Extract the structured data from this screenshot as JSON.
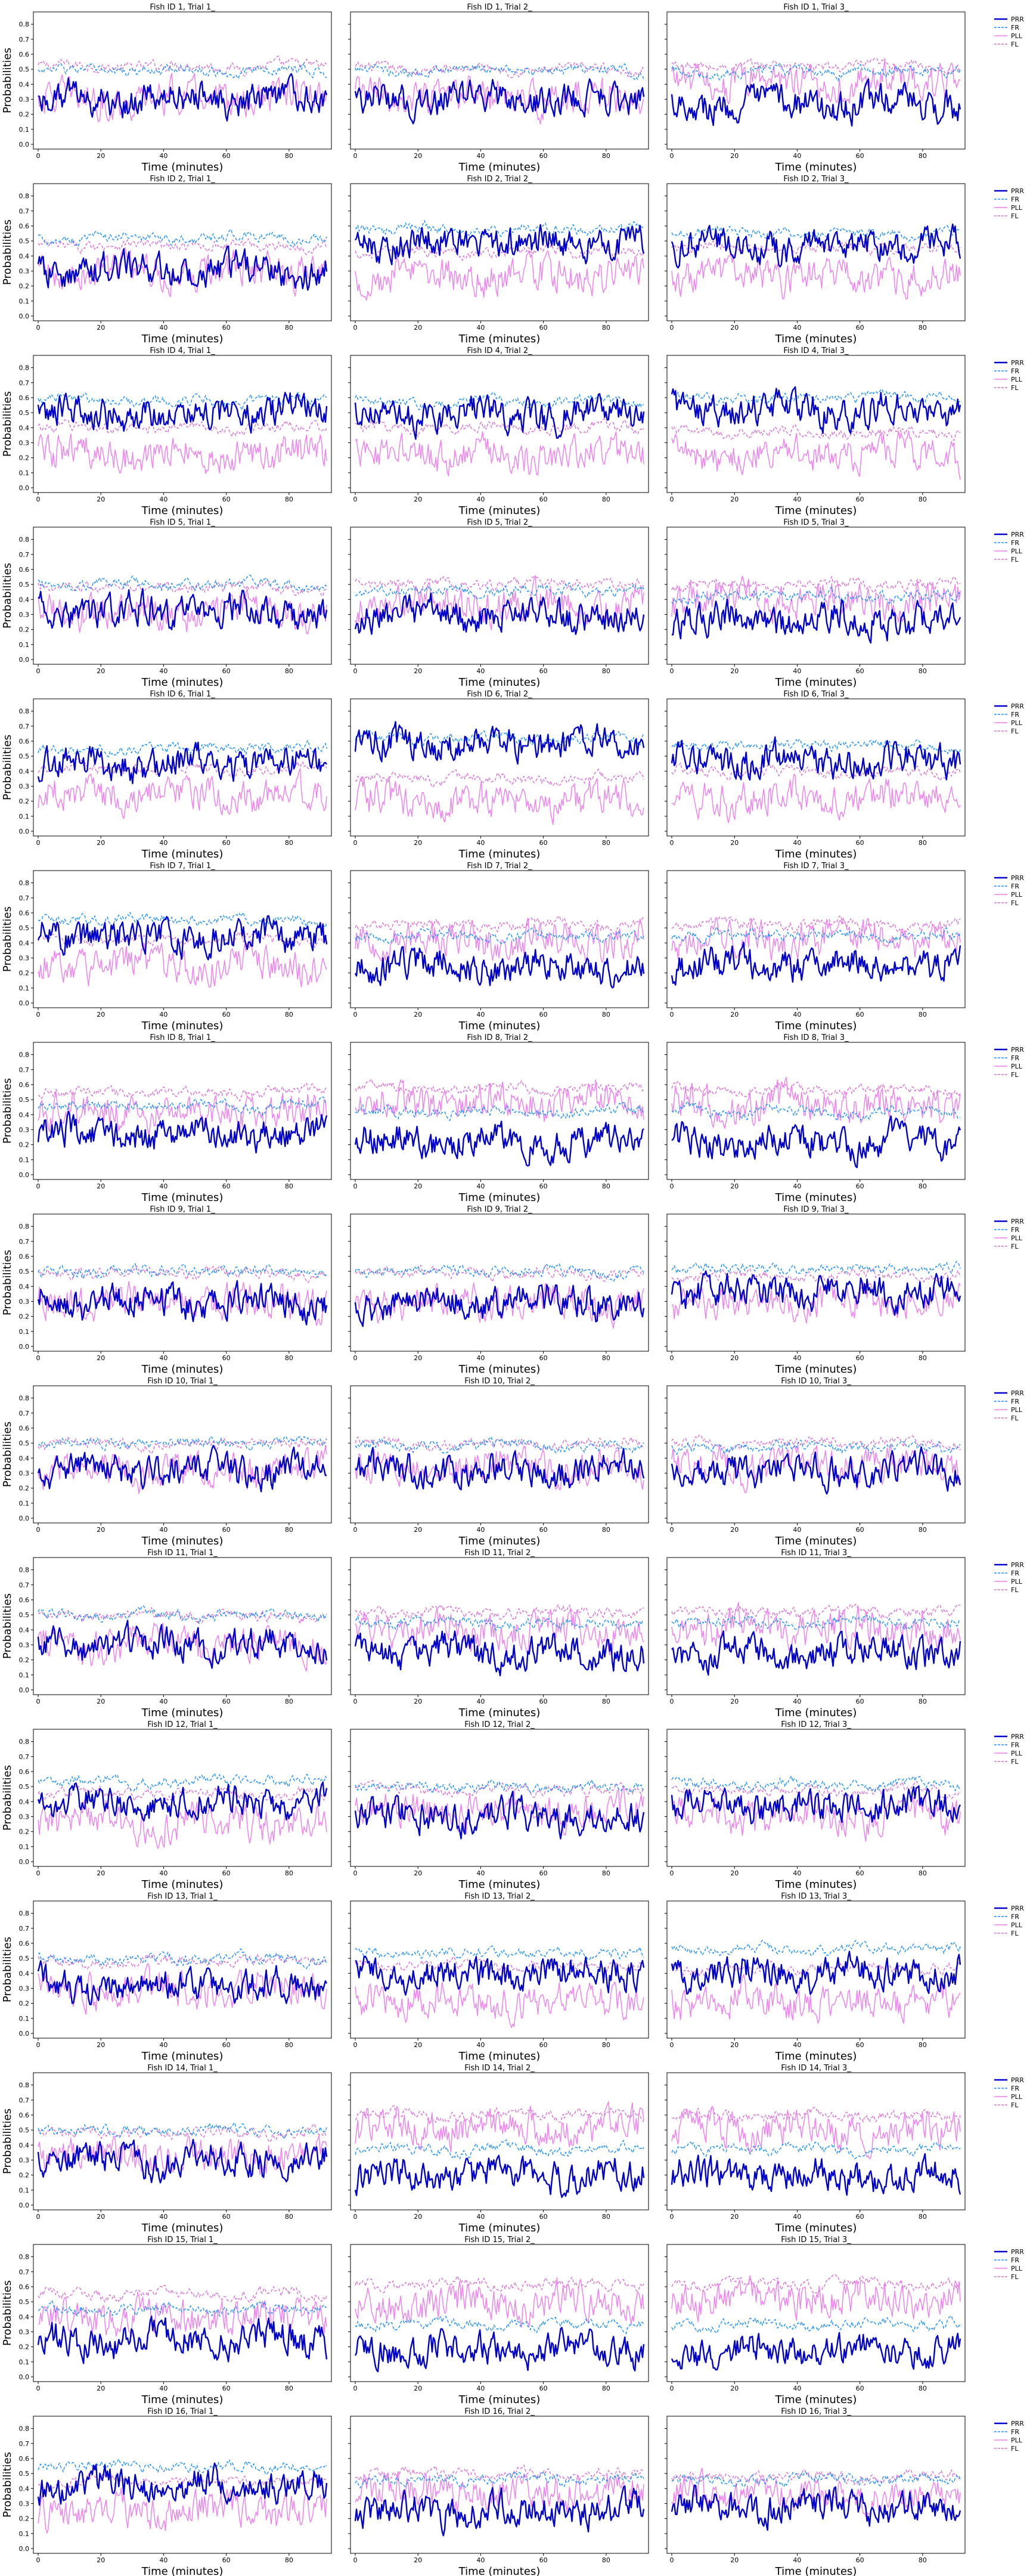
{
  "figure": {
    "ylabel": "Probabilities",
    "xlabel": "Time (minutes)"
  },
  "chart_data": {
    "type": "line",
    "layout": "15 rows x 3 columns of line plots",
    "x_range": [
      0,
      92
    ],
    "ylim": [
      0,
      0.85
    ],
    "x_ticks": [
      0,
      20,
      40,
      60,
      80
    ],
    "y_ticks": [
      0.0,
      0.1,
      0.2,
      0.3,
      0.4,
      0.5,
      0.6,
      0.7,
      0.8
    ],
    "xlabel": "Time (minutes)",
    "ylabel": "Probabilities",
    "legend_placement": "outside right of each row",
    "series": [
      {
        "name": "PRR",
        "color": "#0000cd",
        "style": "solid thick"
      },
      {
        "name": "FR",
        "color": "#1e90ff",
        "style": "dashed"
      },
      {
        "name": "PLL",
        "color": "#ee82ee",
        "style": "solid"
      },
      {
        "name": "FL",
        "color": "#da70d6",
        "style": "dashed"
      }
    ],
    "panels": [
      {
        "title": "Fish ID 1, Trial 1_",
        "means": {
          "PRR": 0.3,
          "FR": 0.49,
          "PLL": 0.3,
          "FL": 0.52
        }
      },
      {
        "title": "Fish ID 1, Trial 2_",
        "means": {
          "PRR": 0.3,
          "FR": 0.49,
          "PLL": 0.31,
          "FL": 0.5
        }
      },
      {
        "title": "Fish ID 1, Trial 3_",
        "means": {
          "PRR": 0.27,
          "FR": 0.48,
          "PLL": 0.42,
          "FL": 0.52
        }
      },
      {
        "title": "Fish ID 2, Trial 1_",
        "means": {
          "PRR": 0.3,
          "FR": 0.52,
          "PLL": 0.3,
          "FL": 0.47
        }
      },
      {
        "title": "Fish ID 2, Trial 2_",
        "means": {
          "PRR": 0.48,
          "FR": 0.58,
          "PLL": 0.27,
          "FL": 0.43
        }
      },
      {
        "title": "Fish ID 2, Trial 3_",
        "means": {
          "PRR": 0.47,
          "FR": 0.55,
          "PLL": 0.27,
          "FL": 0.45
        }
      },
      {
        "title": "Fish ID 4, Trial 1_",
        "means": {
          "PRR": 0.5,
          "FR": 0.58,
          "PLL": 0.22,
          "FL": 0.4
        }
      },
      {
        "title": "Fish ID 4, Trial 2_",
        "means": {
          "PRR": 0.48,
          "FR": 0.57,
          "PLL": 0.22,
          "FL": 0.4
        }
      },
      {
        "title": "Fish ID 4, Trial 3_",
        "means": {
          "PRR": 0.52,
          "FR": 0.6,
          "PLL": 0.22,
          "FL": 0.37
        }
      },
      {
        "title": "Fish ID 5, Trial 1_",
        "means": {
          "PRR": 0.32,
          "FR": 0.5,
          "PLL": 0.32,
          "FL": 0.48
        }
      },
      {
        "title": "Fish ID 5, Trial 2_",
        "means": {
          "PRR": 0.3,
          "FR": 0.46,
          "PLL": 0.37,
          "FL": 0.5
        }
      },
      {
        "title": "Fish ID 5, Trial 3_",
        "means": {
          "PRR": 0.27,
          "FR": 0.42,
          "PLL": 0.4,
          "FL": 0.5
        }
      },
      {
        "title": "Fish ID 6, Trial 1_",
        "means": {
          "PRR": 0.45,
          "FR": 0.55,
          "PLL": 0.25,
          "FL": 0.42
        }
      },
      {
        "title": "Fish ID 6, Trial 2_",
        "means": {
          "PRR": 0.58,
          "FR": 0.62,
          "PLL": 0.2,
          "FL": 0.35
        }
      },
      {
        "title": "Fish ID 6, Trial 3_",
        "means": {
          "PRR": 0.48,
          "FR": 0.57,
          "PLL": 0.22,
          "FL": 0.4
        }
      },
      {
        "title": "Fish ID 7, Trial 1_",
        "means": {
          "PRR": 0.45,
          "FR": 0.56,
          "PLL": 0.25,
          "FL": 0.42
        }
      },
      {
        "title": "Fish ID 7, Trial 2_",
        "means": {
          "PRR": 0.25,
          "FR": 0.45,
          "PLL": 0.42,
          "FL": 0.52
        }
      },
      {
        "title": "Fish ID 7, Trial 3_",
        "means": {
          "PRR": 0.25,
          "FR": 0.45,
          "PLL": 0.42,
          "FL": 0.52
        }
      },
      {
        "title": "Fish ID 8, Trial 1_",
        "means": {
          "PRR": 0.27,
          "FR": 0.46,
          "PLL": 0.42,
          "FL": 0.55
        }
      },
      {
        "title": "Fish ID 8, Trial 2_",
        "means": {
          "PRR": 0.22,
          "FR": 0.42,
          "PLL": 0.47,
          "FL": 0.58
        }
      },
      {
        "title": "Fish ID 8, Trial 3_",
        "means": {
          "PRR": 0.22,
          "FR": 0.42,
          "PLL": 0.47,
          "FL": 0.57
        }
      },
      {
        "title": "Fish ID 9, Trial 1_",
        "means": {
          "PRR": 0.3,
          "FR": 0.5,
          "PLL": 0.3,
          "FL": 0.49
        }
      },
      {
        "title": "Fish ID 9, Trial 2_",
        "means": {
          "PRR": 0.3,
          "FR": 0.5,
          "PLL": 0.3,
          "FL": 0.49
        }
      },
      {
        "title": "Fish ID 9, Trial 3_",
        "means": {
          "PRR": 0.37,
          "FR": 0.52,
          "PLL": 0.3,
          "FL": 0.47
        }
      },
      {
        "title": "Fish ID 10, Trial 1_",
        "means": {
          "PRR": 0.32,
          "FR": 0.5,
          "PLL": 0.32,
          "FL": 0.49
        }
      },
      {
        "title": "Fish ID 10, Trial 2_",
        "means": {
          "PRR": 0.32,
          "FR": 0.48,
          "PLL": 0.33,
          "FL": 0.5
        }
      },
      {
        "title": "Fish ID 10, Trial 3_",
        "means": {
          "PRR": 0.32,
          "FR": 0.47,
          "PLL": 0.35,
          "FL": 0.5
        }
      },
      {
        "title": "Fish ID 11, Trial 1_",
        "means": {
          "PRR": 0.3,
          "FR": 0.5,
          "PLL": 0.3,
          "FL": 0.49
        }
      },
      {
        "title": "Fish ID 11, Trial 2_",
        "means": {
          "PRR": 0.25,
          "FR": 0.45,
          "PLL": 0.4,
          "FL": 0.52
        }
      },
      {
        "title": "Fish ID 11, Trial 3_",
        "means": {
          "PRR": 0.25,
          "FR": 0.45,
          "PLL": 0.4,
          "FL": 0.52
        }
      },
      {
        "title": "Fish ID 12, Trial 1_",
        "means": {
          "PRR": 0.4,
          "FR": 0.54,
          "PLL": 0.26,
          "FL": 0.45
        }
      },
      {
        "title": "Fish ID 12, Trial 2_",
        "means": {
          "PRR": 0.3,
          "FR": 0.5,
          "PLL": 0.33,
          "FL": 0.48
        }
      },
      {
        "title": "Fish ID 12, Trial 3_",
        "means": {
          "PRR": 0.37,
          "FR": 0.52,
          "PLL": 0.3,
          "FL": 0.47
        }
      },
      {
        "title": "Fish ID 13, Trial 1_",
        "means": {
          "PRR": 0.32,
          "FR": 0.5,
          "PLL": 0.3,
          "FL": 0.48
        }
      },
      {
        "title": "Fish ID 13, Trial 2_",
        "means": {
          "PRR": 0.4,
          "FR": 0.54,
          "PLL": 0.22,
          "FL": 0.45
        }
      },
      {
        "title": "Fish ID 13, Trial 3_",
        "means": {
          "PRR": 0.4,
          "FR": 0.56,
          "PLL": 0.22,
          "FL": 0.43
        }
      },
      {
        "title": "Fish ID 14, Trial 1_",
        "means": {
          "PRR": 0.3,
          "FR": 0.5,
          "PLL": 0.33,
          "FL": 0.48
        }
      },
      {
        "title": "Fish ID 14, Trial 2_",
        "means": {
          "PRR": 0.2,
          "FR": 0.37,
          "PLL": 0.52,
          "FL": 0.6
        }
      },
      {
        "title": "Fish ID 14, Trial 3_",
        "means": {
          "PRR": 0.2,
          "FR": 0.37,
          "PLL": 0.5,
          "FL": 0.6
        }
      },
      {
        "title": "Fish ID 15, Trial 1_",
        "means": {
          "PRR": 0.25,
          "FR": 0.45,
          "PLL": 0.4,
          "FL": 0.55
        }
      },
      {
        "title": "Fish ID 15, Trial 2_",
        "means": {
          "PRR": 0.18,
          "FR": 0.35,
          "PLL": 0.5,
          "FL": 0.62
        }
      },
      {
        "title": "Fish ID 15, Trial 3_",
        "means": {
          "PRR": 0.18,
          "FR": 0.35,
          "PLL": 0.52,
          "FL": 0.62
        }
      },
      {
        "title": "Fish ID 16, Trial 1_",
        "means": {
          "PRR": 0.42,
          "FR": 0.55,
          "PLL": 0.25,
          "FL": 0.45
        }
      },
      {
        "title": "Fish ID 16, Trial 2_",
        "means": {
          "PRR": 0.25,
          "FR": 0.46,
          "PLL": 0.38,
          "FL": 0.5
        }
      },
      {
        "title": "Fish ID 16, Trial 3_",
        "means": {
          "PRR": 0.28,
          "FR": 0.46,
          "PLL": 0.35,
          "FL": 0.48
        }
      }
    ]
  }
}
